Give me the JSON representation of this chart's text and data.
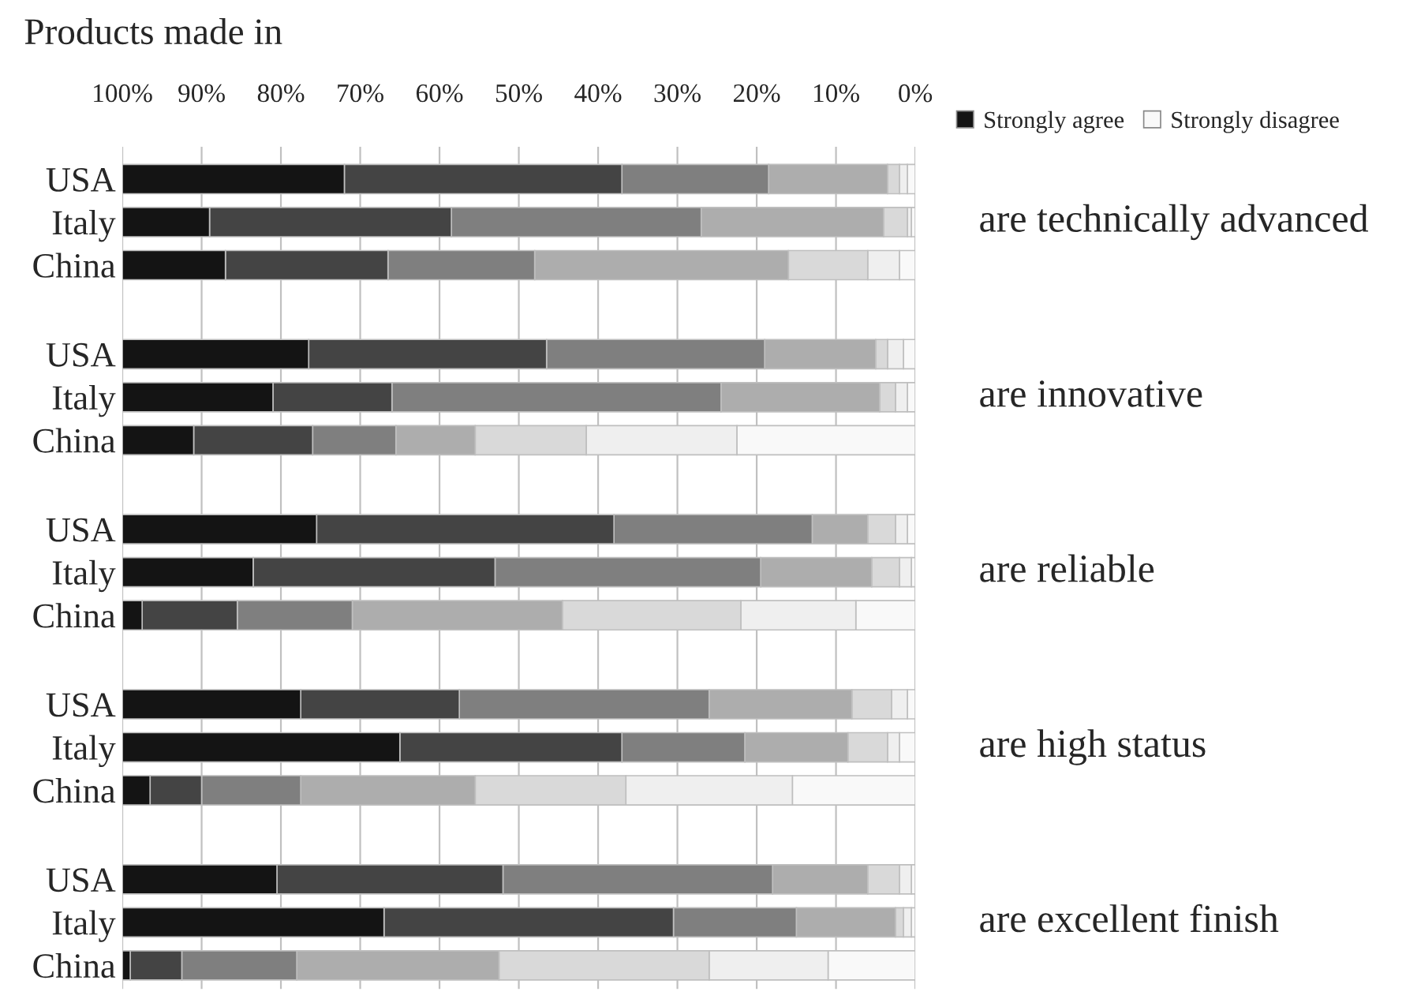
{
  "chart_data": {
    "type": "bar",
    "orientation": "horizontal",
    "stacked": true,
    "title": "Products made in",
    "categories": [
      "USA",
      "Italy",
      "China",
      "USA",
      "Italy",
      "China",
      "USA",
      "Italy",
      "China",
      "USA",
      "Italy",
      "China",
      "USA",
      "Italy",
      "China"
    ],
    "series": [
      {
        "name": "Strongly disagree",
        "color": "#f9f9f9",
        "values": [
          1,
          0.5,
          2,
          1.5,
          1,
          22.5,
          1,
          0.5,
          7.5,
          1,
          2,
          15.5,
          0.5,
          0.5,
          11
        ]
      },
      {
        "color": "#efefef",
        "values": [
          1,
          0.5,
          4,
          2,
          1.5,
          19,
          1.5,
          1.5,
          14.5,
          2,
          1.5,
          21,
          1.5,
          1,
          15
        ]
      },
      {
        "color": "#d9d9d9",
        "values": [
          1.5,
          3,
          10,
          1.5,
          2,
          14,
          3.5,
          3.5,
          22.5,
          5,
          5,
          19,
          4,
          1,
          26.5
        ]
      },
      {
        "color": "#adadad",
        "values": [
          15,
          23,
          32,
          14,
          20,
          10,
          7,
          14,
          26.5,
          18,
          13,
          22,
          12,
          12.5,
          25.5
        ]
      },
      {
        "color": "#7f7f7f",
        "values": [
          18.5,
          31.5,
          18.5,
          27.5,
          41.5,
          10.5,
          25,
          33.5,
          14.5,
          31.5,
          15.5,
          12.5,
          34,
          15.5,
          14.5
        ]
      },
      {
        "color": "#444444",
        "values": [
          35,
          30.5,
          20.5,
          30,
          15,
          15,
          37.5,
          30.5,
          12,
          20,
          28,
          6.5,
          28.5,
          36.5,
          6.5
        ]
      },
      {
        "name": "Strongly agree",
        "color": "#141414",
        "values": [
          28,
          11,
          13,
          23.5,
          19,
          9,
          24.5,
          16.5,
          2.5,
          22.5,
          35,
          3.5,
          19.5,
          33,
          1
        ]
      }
    ],
    "xlim": [
      100,
      0
    ],
    "xticks": [
      {
        "value": 100,
        "label": "100%"
      },
      {
        "value": 90,
        "label": "90%"
      },
      {
        "value": 80,
        "label": "80%"
      },
      {
        "value": 70,
        "label": "70%"
      },
      {
        "value": 60,
        "label": "60%"
      },
      {
        "value": 50,
        "label": "50%"
      },
      {
        "value": 40,
        "label": "40%"
      },
      {
        "value": 30,
        "label": "30%"
      },
      {
        "value": 20,
        "label": "20%"
      },
      {
        "value": 10,
        "label": "10%"
      },
      {
        "value": 0,
        "label": "0%"
      }
    ],
    "grid": "x",
    "legend": "top right",
    "annotations": [
      "are technically advanced",
      "are innovative",
      "are reliable",
      "are high status",
      "are excellent finish"
    ]
  }
}
